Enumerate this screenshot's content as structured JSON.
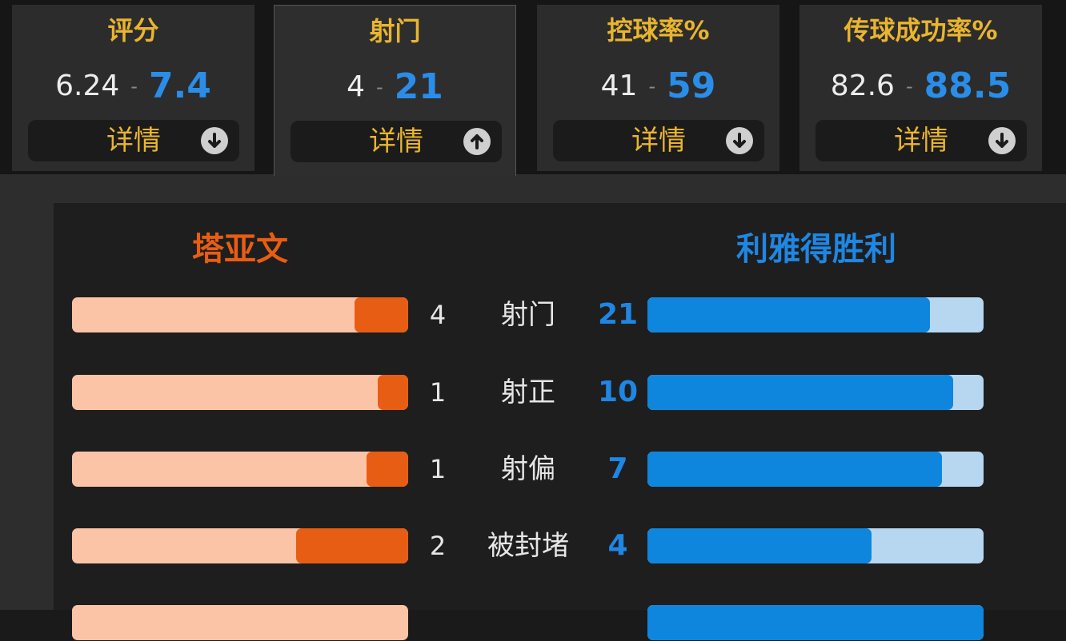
{
  "tabs": [
    {
      "title": "评分",
      "home": "6.24",
      "sep": "-",
      "away": "7.4",
      "detail": "详情",
      "arrow_icon": "arrow-down-icon",
      "active": false
    },
    {
      "title": "射门",
      "home": "4",
      "sep": "-",
      "away": "21",
      "detail": "详情",
      "arrow_icon": "arrow-up-icon",
      "active": true
    },
    {
      "title": "控球率%",
      "home": "41",
      "sep": "-",
      "away": "59",
      "detail": "详情",
      "arrow_icon": "arrow-down-icon",
      "active": false
    },
    {
      "title": "传球成功率%",
      "home": "82.6",
      "sep": "-",
      "away": "88.5",
      "detail": "详情",
      "arrow_icon": "arrow-down-icon",
      "active": false
    }
  ],
  "panel": {
    "home_team": "塔亚文",
    "away_team": "利雅得胜利",
    "rows": [
      {
        "label": "射门",
        "home": "4",
        "away": "21",
        "home_share": 0.16,
        "away_share": 0.84
      },
      {
        "label": "射正",
        "home": "1",
        "away": "10",
        "home_share": 0.09,
        "away_share": 0.91
      },
      {
        "label": "射偏",
        "home": "1",
        "away": "7",
        "home_share": 0.125,
        "away_share": 0.875
      },
      {
        "label": "被封堵",
        "home": "2",
        "away": "4",
        "home_share": 0.333,
        "away_share": 0.667
      }
    ]
  },
  "colors": {
    "accent_gold": "#e9b52f",
    "home_orange": "#e85d14",
    "home_light": "#fbc4a6",
    "away_blue": "#0f86de",
    "away_light": "#b6d7ef"
  }
}
